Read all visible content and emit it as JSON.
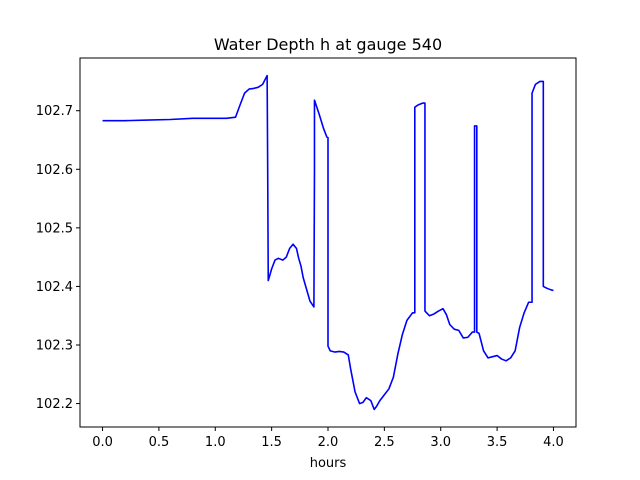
{
  "chart_data": {
    "type": "line",
    "title": "Water Depth h at gauge 540",
    "xlabel": "hours",
    "ylabel": "",
    "xlim": [
      -0.2,
      4.2
    ],
    "ylim": [
      102.16,
      102.79
    ],
    "xticks": [
      0.0,
      0.5,
      1.0,
      1.5,
      2.0,
      2.5,
      3.0,
      3.5,
      4.0
    ],
    "xtick_labels": [
      "0.0",
      "0.5",
      "1.0",
      "1.5",
      "2.0",
      "2.5",
      "3.0",
      "3.5",
      "4.0"
    ],
    "yticks": [
      102.2,
      102.3,
      102.4,
      102.5,
      102.6,
      102.7
    ],
    "ytick_labels": [
      "102.2",
      "102.3",
      "102.4",
      "102.5",
      "102.6",
      "102.7"
    ],
    "grid": false,
    "series": [
      {
        "color": "#0000ff",
        "x": [
          0.0,
          0.2,
          0.4,
          0.6,
          0.8,
          1.0,
          1.1,
          1.18,
          1.22,
          1.26,
          1.3,
          1.34,
          1.38,
          1.42,
          1.46,
          1.465,
          1.47,
          1.5,
          1.53,
          1.56,
          1.6,
          1.63,
          1.66,
          1.69,
          1.72,
          1.74,
          1.76,
          1.78,
          1.81,
          1.84,
          1.875,
          1.88,
          1.88,
          1.92,
          1.96,
          1.99,
          2.0,
          2.0,
          2.02,
          2.06,
          2.1,
          2.14,
          2.18,
          2.2,
          2.24,
          2.28,
          2.31,
          2.34,
          2.38,
          2.41,
          2.43,
          2.46,
          2.5,
          2.54,
          2.58,
          2.62,
          2.66,
          2.7,
          2.75,
          2.77,
          2.77,
          2.8,
          2.84,
          2.86,
          2.86,
          2.9,
          2.94,
          2.98,
          3.02,
          3.05,
          3.08,
          3.12,
          3.16,
          3.2,
          3.24,
          3.28,
          3.3,
          3.3,
          3.32,
          3.32,
          3.34,
          3.38,
          3.42,
          3.46,
          3.5,
          3.54,
          3.58,
          3.62,
          3.66,
          3.7,
          3.74,
          3.78,
          3.81,
          3.81,
          3.84,
          3.88,
          3.91,
          3.91,
          3.94,
          3.98,
          4.0
        ],
        "y": [
          102.683,
          102.683,
          102.684,
          102.685,
          102.687,
          102.687,
          102.687,
          102.689,
          102.71,
          102.73,
          102.737,
          102.738,
          102.74,
          102.745,
          102.76,
          102.6,
          102.41,
          102.43,
          102.445,
          102.448,
          102.445,
          102.45,
          102.465,
          102.472,
          102.465,
          102.448,
          102.435,
          102.415,
          102.395,
          102.375,
          102.365,
          102.6,
          102.718,
          102.695,
          102.67,
          102.655,
          102.654,
          102.298,
          102.29,
          102.288,
          102.289,
          102.288,
          102.283,
          102.26,
          102.22,
          102.2,
          102.202,
          102.21,
          102.205,
          102.19,
          102.195,
          102.205,
          102.215,
          102.225,
          102.245,
          102.285,
          102.318,
          102.342,
          102.355,
          102.355,
          102.706,
          102.71,
          102.713,
          102.713,
          102.358,
          102.35,
          102.353,
          102.358,
          102.362,
          102.352,
          102.335,
          102.327,
          102.325,
          102.312,
          102.313,
          102.322,
          102.322,
          102.674,
          102.674,
          102.322,
          102.32,
          102.29,
          102.278,
          102.28,
          102.282,
          102.276,
          102.273,
          102.278,
          102.29,
          102.33,
          102.355,
          102.373,
          102.373,
          102.73,
          102.745,
          102.75,
          102.75,
          102.4,
          102.397,
          102.394,
          102.393
        ]
      }
    ]
  }
}
